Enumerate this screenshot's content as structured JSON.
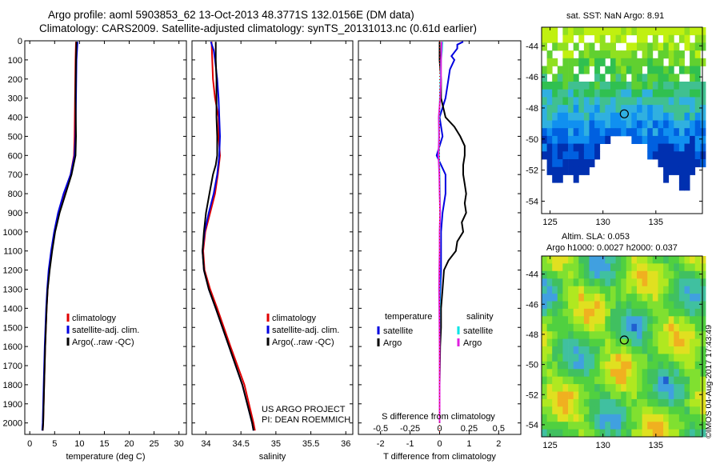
{
  "header": {
    "line1": "Argo profile: aoml 5903853_62 13-Oct-2013 48.3771S 132.0156E (DM data)",
    "line2": "Climatology: CARS2009. Satellite-adjusted climatology: synTS_20131013.nc (0.61d earlier)"
  },
  "credit": {
    "project": "US ARGO PROJECT",
    "pi": "PI: DEAN ROEMMICH",
    "stamp": "©IMOS 04-Aug-2017 17:43:49"
  },
  "colors": {
    "climatology": "#e00000",
    "satellite": "#0000e0",
    "argo": "#000000",
    "sal_satellite": "#00e5e5",
    "sal_argo": "#e020e0"
  },
  "chart_data": [
    {
      "id": "temperature",
      "type": "line",
      "xlabel": "temperature (deg C)",
      "xlim": [
        -1,
        31.5
      ],
      "xticks": [
        0,
        5,
        10,
        15,
        20,
        25,
        30
      ],
      "ylim": [
        2060,
        0
      ],
      "yticks": [
        0,
        100,
        200,
        300,
        400,
        500,
        600,
        700,
        800,
        900,
        1000,
        1100,
        1200,
        1300,
        1400,
        1500,
        1600,
        1700,
        1800,
        1900,
        2000
      ],
      "legend": [
        "climatology",
        "satellite-adj. clim.",
        "Argo(..raw -QC)"
      ],
      "series": [
        {
          "name": "climatology",
          "color": "#e00000",
          "depth": [
            5,
            100,
            300,
            500,
            600,
            700,
            800,
            900,
            1000,
            1100,
            1200,
            1300,
            1400,
            1600,
            1800,
            2000,
            2040
          ],
          "values": [
            9.3,
            9.2,
            9.1,
            9.0,
            8.9,
            8.2,
            6.9,
            5.8,
            5.0,
            4.4,
            3.9,
            3.6,
            3.4,
            3.1,
            2.9,
            2.7,
            2.6
          ]
        },
        {
          "name": "satellite-adj. clim.",
          "color": "#0000e0",
          "depth": [
            5,
            100,
            300,
            500,
            600,
            700,
            800,
            900,
            1000,
            1100,
            1200,
            1300,
            1400,
            1600,
            1800,
            2000,
            2040
          ],
          "values": [
            9.6,
            9.4,
            9.3,
            9.2,
            9.0,
            8.2,
            6.8,
            5.7,
            4.9,
            4.3,
            3.8,
            3.5,
            3.3,
            3.0,
            2.8,
            2.6,
            2.5
          ]
        },
        {
          "name": "Argo(..raw -QC)",
          "color": "#000000",
          "depth": [
            5,
            100,
            300,
            500,
            600,
            650,
            700,
            800,
            900,
            1000,
            1100,
            1200,
            1300,
            1400,
            1600,
            1800,
            2000,
            2040
          ],
          "values": [
            9.4,
            9.3,
            9.2,
            9.3,
            9.2,
            8.8,
            8.4,
            7.2,
            6.0,
            5.1,
            4.5,
            4.0,
            3.6,
            3.4,
            3.1,
            2.9,
            2.7,
            2.6
          ]
        }
      ]
    },
    {
      "id": "salinity",
      "type": "line",
      "xlabel": "salinity",
      "xlim": [
        33.8,
        36.1
      ],
      "xticks": [
        34,
        34.5,
        35,
        35.5,
        36
      ],
      "xtick_labels": [
        "34",
        "34.5",
        "35",
        "35.5",
        "36"
      ],
      "ylim": [
        2060,
        0
      ],
      "legend": [
        "climatology",
        "satellite-adj. clim.",
        "Argo(..raw -QC)"
      ],
      "series": [
        {
          "name": "climatology",
          "color": "#e00000",
          "depth": [
            5,
            100,
            200,
            300,
            400,
            500,
            600,
            700,
            800,
            900,
            1000,
            1100,
            1200,
            1300,
            1400,
            1600,
            1800,
            2000,
            2040
          ],
          "values": [
            34.08,
            34.09,
            34.1,
            34.13,
            34.18,
            34.18,
            34.2,
            34.17,
            34.13,
            34.06,
            33.99,
            33.96,
            33.98,
            34.06,
            34.16,
            34.35,
            34.55,
            34.68,
            34.7
          ]
        },
        {
          "name": "satellite-adj. clim.",
          "color": "#0000e0",
          "depth": [
            5,
            50,
            100,
            200,
            300,
            400,
            500,
            600,
            700,
            800,
            900,
            1000,
            1100,
            1200,
            1300,
            1400,
            1600,
            1800,
            2000,
            2040
          ],
          "values": [
            34.07,
            34.11,
            34.13,
            34.16,
            34.18,
            34.19,
            34.2,
            34.19,
            34.16,
            34.11,
            34.04,
            33.98,
            33.95,
            33.97,
            34.04,
            34.14,
            34.33,
            34.52,
            34.66,
            34.68
          ]
        },
        {
          "name": "Argo(..raw -QC)",
          "color": "#000000",
          "depth": [
            5,
            100,
            200,
            300,
            400,
            500,
            600,
            650,
            700,
            800,
            900,
            1000,
            1100,
            1200,
            1300,
            1400,
            1600,
            1800,
            2000,
            2040
          ],
          "values": [
            34.14,
            34.14,
            34.15,
            34.15,
            34.15,
            34.16,
            34.16,
            34.14,
            34.1,
            34.05,
            34.0,
            33.97,
            33.95,
            33.97,
            34.04,
            34.14,
            34.33,
            34.52,
            34.66,
            34.68
          ]
        }
      ]
    },
    {
      "id": "difference",
      "type": "line",
      "xlabel": "T difference from climatology",
      "xlim": [
        -2.75,
        2.75
      ],
      "xticks": [
        -2,
        -1,
        0,
        1,
        2
      ],
      "top_xlabel": "S difference from climatology",
      "top_xticks": [
        -0.5,
        -0.25,
        0,
        0.25,
        0.5
      ],
      "top_xlim": [
        -0.6875,
        0.6875
      ],
      "top_xtick_labels": [
        "-0.5",
        "-0.25",
        "0",
        "0.25",
        "0.5"
      ],
      "ylim": [
        2060,
        0
      ],
      "legend_temperature_title": "temperature",
      "legend_salinity_title": "salinity",
      "legend": [
        "satellite",
        "Argo",
        "satellite",
        "Argo"
      ],
      "series": [
        {
          "name": "temperature satellite",
          "color": "#0000e0",
          "depth": [
            5,
            20,
            40,
            60,
            80,
            100,
            150,
            200,
            300,
            400,
            500,
            600,
            700,
            800,
            900,
            1000,
            1200,
            1400,
            1600,
            1800,
            2000
          ],
          "values": [
            0.8,
            0.6,
            0.6,
            0.5,
            0.4,
            0.5,
            0.35,
            0.3,
            0.2,
            0.0,
            0.1,
            -0.1,
            0.2,
            0.2,
            0.1,
            0.05,
            0.05,
            0.0,
            0.0,
            0.0,
            0.0
          ]
        },
        {
          "name": "temperature Argo",
          "color": "#000000",
          "depth": [
            5,
            100,
            200,
            300,
            400,
            450,
            500,
            550,
            600,
            650,
            700,
            750,
            800,
            850,
            900,
            950,
            1000,
            1050,
            1100,
            1150,
            1200,
            1300,
            1400,
            1500,
            1600,
            1800,
            2000
          ],
          "values": [
            0.0,
            0.0,
            0.05,
            0.05,
            0.2,
            0.5,
            0.7,
            0.85,
            0.85,
            0.8,
            0.8,
            0.85,
            0.9,
            0.85,
            0.9,
            0.75,
            0.8,
            0.6,
            0.55,
            0.3,
            0.15,
            0.1,
            0.05,
            0.05,
            0.02,
            0.0,
            0.0
          ]
        },
        {
          "name": "salinity satellite",
          "color": "#00e5e5",
          "depth": [
            5,
            20,
            50,
            100,
            150,
            200,
            300,
            400,
            500,
            600,
            700,
            800,
            900,
            1000,
            1200,
            1400,
            1600,
            1800,
            2000
          ],
          "values": [
            0.1,
            0.09,
            0.08,
            0.05,
            0.04,
            0.03,
            0.01,
            -0.01,
            -0.02,
            -0.02,
            0.0,
            0.01,
            0.02,
            0.01,
            0.0,
            0.0,
            0.0,
            0.0,
            0.0
          ]
        },
        {
          "name": "salinity Argo",
          "color": "#e020e0",
          "depth": [
            5,
            100,
            200,
            300,
            400,
            500,
            600,
            700,
            800,
            900,
            1000,
            1100,
            1200,
            1300,
            1400,
            1600,
            1800,
            2000
          ],
          "values": [
            0.07,
            0.05,
            0.05,
            0.02,
            -0.03,
            -0.02,
            -0.04,
            -0.01,
            0.0,
            0.02,
            0.0,
            0.0,
            -0.01,
            -0.02,
            -0.01,
            0.0,
            0.0,
            0.0
          ]
        }
      ]
    },
    {
      "id": "sst-map",
      "type": "heatmap",
      "title": "sat. SST: NaN Argo: 8.91",
      "xlim": [
        124.2,
        139.4
      ],
      "ylim": [
        -54.8,
        -42.8
      ],
      "xticks": [
        125,
        130,
        135
      ],
      "yticks": [
        -44,
        -46,
        -48,
        -50,
        -52,
        -54
      ],
      "marker": {
        "lon": 132.0156,
        "lat": -48.3771
      }
    },
    {
      "id": "sla-map",
      "type": "heatmap",
      "title": "Altim. SLA: 0.053",
      "subtitle": "Argo h1000: 0.0027 h2000: 0.037",
      "xlim": [
        124.2,
        139.4
      ],
      "ylim": [
        -54.8,
        -42.8
      ],
      "xticks": [
        125,
        130,
        135
      ],
      "yticks": [
        -44,
        -46,
        -48,
        -50,
        -52,
        -54
      ],
      "marker": {
        "lon": 132.0156,
        "lat": -48.3771
      }
    }
  ]
}
